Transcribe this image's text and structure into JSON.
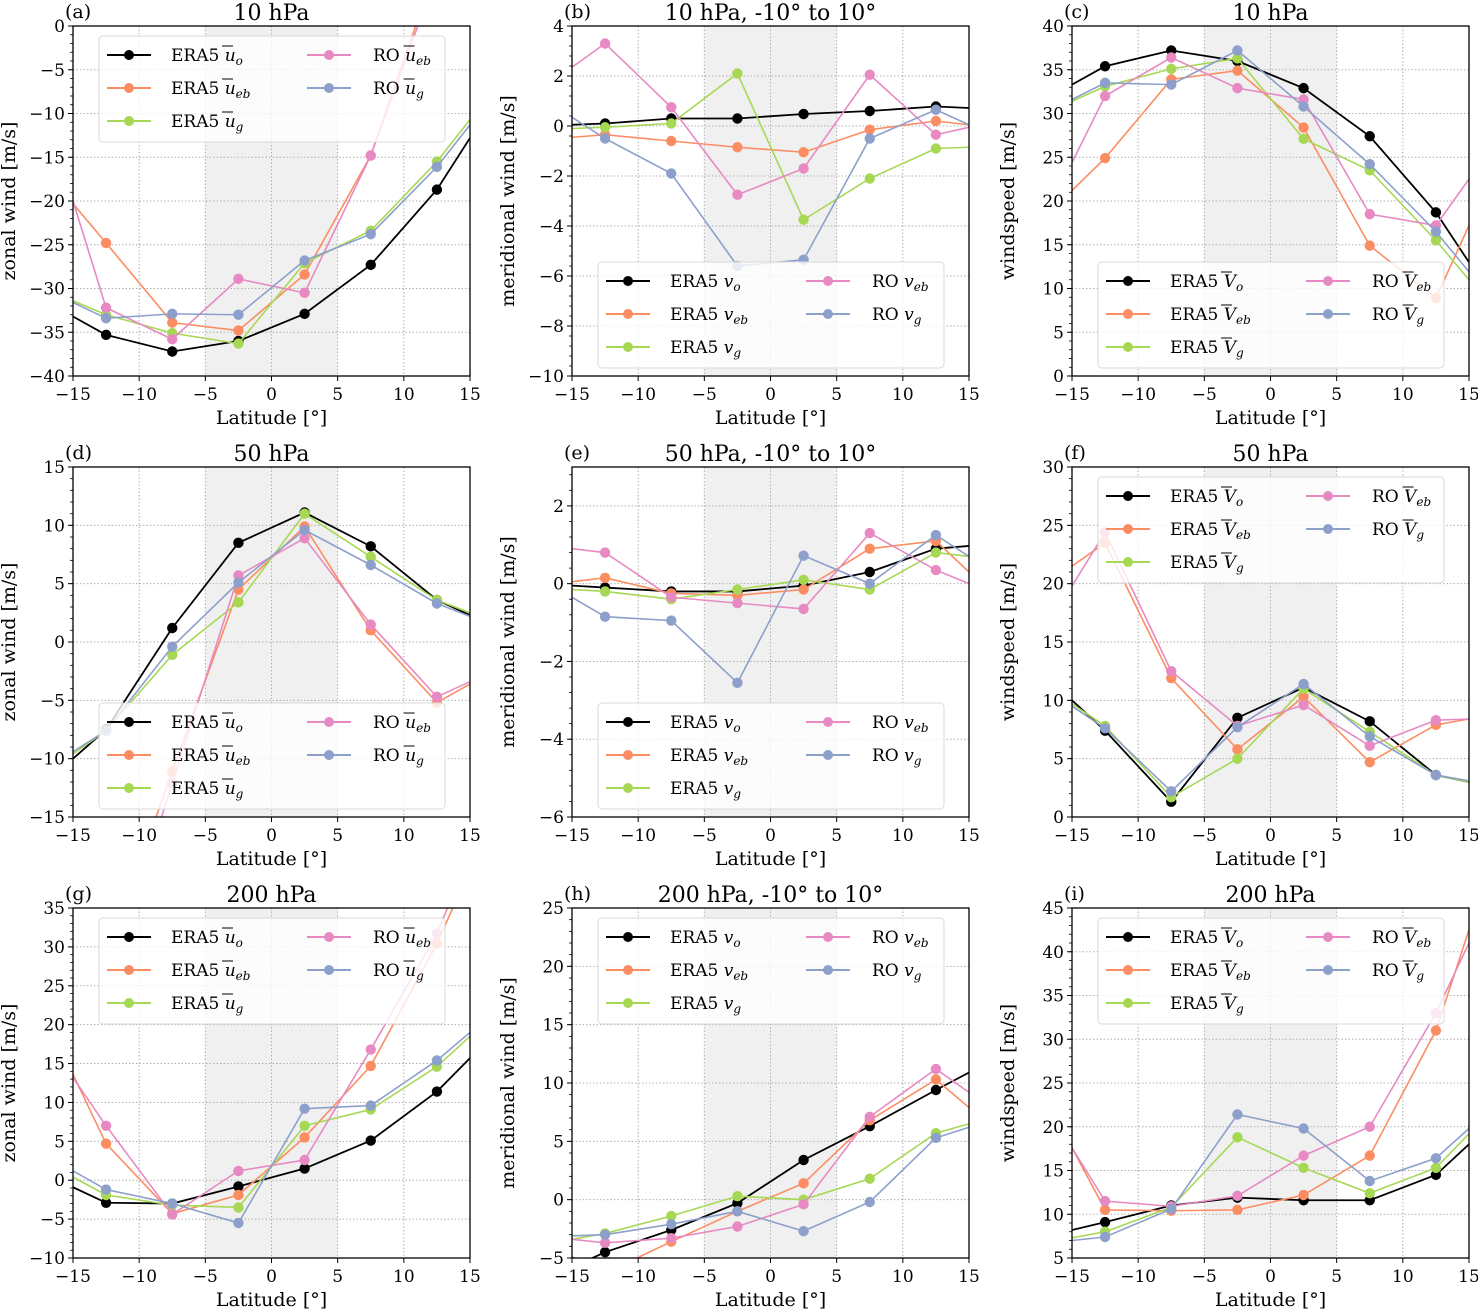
{
  "figure": {
    "xlabel": "Latitude [°]",
    "x_ticks": [
      -15,
      -10,
      -5,
      0,
      5,
      10,
      15
    ],
    "shaded_band": [
      -5,
      5
    ],
    "colors": {
      "ERA5_o": "#000000",
      "ERA5_eb": "#fc8d62",
      "ERA5_g": "#a6d854",
      "RO_eb": "#e78ac3",
      "RO_g": "#8da0cb",
      "band": "#f0f0f0",
      "grid": "#b0b0b0",
      "legend_border": "#d9d9d9"
    }
  },
  "chart_data": [
    {
      "id": "a",
      "letter": "(a)",
      "type": "line",
      "title": "10 hPa",
      "xlabel": "Latitude [°]",
      "ylabel": "zonal wind [m/s]",
      "xlim": [
        -15,
        15
      ],
      "ylim": [
        -40,
        0
      ],
      "yticks": [
        -40,
        -35,
        -30,
        -25,
        -20,
        -15,
        -10,
        -5,
        0
      ],
      "legend_placement": "top",
      "legend_var": "u",
      "legend_bar": true,
      "x": [
        -15,
        -12.5,
        -7.5,
        -2.5,
        2.5,
        7.5,
        12.5,
        15
      ],
      "series": [
        {
          "key": "ERA5_o",
          "name": "ERA5 ū_o",
          "prefix": "ERA5",
          "sub": "o",
          "values": [
            -33.2,
            -35.3,
            -37.2,
            -36.0,
            -32.9,
            -27.3,
            -18.7,
            -12.8
          ]
        },
        {
          "key": "ERA5_eb",
          "name": "ERA5 ū_eb",
          "prefix": "ERA5",
          "sub": "eb",
          "values": [
            -20.3,
            -24.8,
            -33.9,
            -34.8,
            -28.4,
            -14.8,
            7.0,
            16.0
          ]
        },
        {
          "key": "ERA5_g",
          "name": "ERA5 ū_g",
          "prefix": "ERA5",
          "sub": "g",
          "values": [
            -31.4,
            -33.0,
            -35.1,
            -36.3,
            -27.1,
            -23.4,
            -15.5,
            -10.7
          ]
        },
        {
          "key": "RO_eb",
          "name": "RO ū_eb",
          "prefix": "RO",
          "sub": "eb",
          "values": [
            -20.0,
            -32.2,
            -35.8,
            -28.9,
            -30.5,
            -14.8,
            6.0,
            15.0
          ]
        },
        {
          "key": "RO_g",
          "name": "RO ū_g",
          "prefix": "RO",
          "sub": "g",
          "values": [
            -31.6,
            -33.4,
            -32.9,
            -33.0,
            -26.8,
            -23.8,
            -16.1,
            -11.3
          ]
        }
      ]
    },
    {
      "id": "b",
      "letter": "(b)",
      "type": "line",
      "title": "10 hPa, -10° to 10°",
      "xlabel": "Latitude [°]",
      "ylabel": "meridional wind [m/s]",
      "xlim": [
        -15,
        15
      ],
      "ylim": [
        -10,
        4
      ],
      "yticks": [
        -10,
        -8,
        -6,
        -4,
        -2,
        0,
        2,
        4
      ],
      "legend_placement": "bottom",
      "legend_var": "v",
      "legend_bar": false,
      "x": [
        -15,
        -12.5,
        -7.5,
        -2.5,
        2.5,
        7.5,
        12.5,
        15
      ],
      "series": [
        {
          "key": "ERA5_o",
          "name": "ERA5 v_o",
          "prefix": "ERA5",
          "sub": "o",
          "values": [
            0.05,
            0.1,
            0.3,
            0.3,
            0.48,
            0.6,
            0.78,
            0.72
          ]
        },
        {
          "key": "ERA5_eb",
          "name": "ERA5 v_eb",
          "prefix": "ERA5",
          "sub": "eb",
          "values": [
            -0.45,
            -0.35,
            -0.6,
            -0.85,
            -1.05,
            -0.15,
            0.2,
            0.05
          ]
        },
        {
          "key": "ERA5_g",
          "name": "ERA5 v_g",
          "prefix": "ERA5",
          "sub": "g",
          "values": [
            -0.1,
            -0.05,
            0.1,
            2.1,
            -3.75,
            -2.1,
            -0.9,
            -0.85
          ]
        },
        {
          "key": "RO_eb",
          "name": "RO v_eb",
          "prefix": "RO",
          "sub": "eb",
          "values": [
            2.35,
            3.3,
            0.75,
            -2.75,
            -1.7,
            2.05,
            -0.35,
            -0.05
          ]
        },
        {
          "key": "RO_g",
          "name": "RO v_g",
          "prefix": "RO",
          "sub": "g",
          "values": [
            0.35,
            -0.5,
            -1.9,
            -5.6,
            -5.35,
            -0.5,
            0.65,
            0.05
          ]
        }
      ]
    },
    {
      "id": "c",
      "letter": "(c)",
      "type": "line",
      "title": "10 hPa",
      "xlabel": "Latitude [°]",
      "ylabel": "windspeed [m/s]",
      "xlim": [
        -15,
        15
      ],
      "ylim": [
        0,
        40
      ],
      "yticks": [
        0,
        5,
        10,
        15,
        20,
        25,
        30,
        35,
        40
      ],
      "legend_placement": "bottom",
      "legend_var": "V",
      "legend_bar": true,
      "x": [
        -15,
        -12.5,
        -7.5,
        -2.5,
        2.5,
        7.5,
        12.5,
        15
      ],
      "series": [
        {
          "key": "ERA5_o",
          "name": "ERA5 V̄_o",
          "prefix": "ERA5",
          "sub": "o",
          "values": [
            33.3,
            35.4,
            37.2,
            36.0,
            32.9,
            27.4,
            18.7,
            13.0
          ]
        },
        {
          "key": "ERA5_eb",
          "name": "ERA5 V̄_eb",
          "prefix": "ERA5",
          "sub": "eb",
          "values": [
            21.2,
            24.9,
            33.9,
            34.9,
            28.4,
            14.9,
            8.9,
            17.2
          ]
        },
        {
          "key": "ERA5_g",
          "name": "ERA5 V̄_g",
          "prefix": "ERA5",
          "sub": "g",
          "values": [
            31.4,
            33.1,
            35.1,
            36.3,
            27.1,
            23.5,
            15.5,
            11.0
          ]
        },
        {
          "key": "RO_eb",
          "name": "RO V̄_eb",
          "prefix": "RO",
          "sub": "eb",
          "values": [
            24.4,
            32.0,
            36.4,
            32.9,
            31.6,
            18.5,
            17.2,
            22.5
          ]
        },
        {
          "key": "RO_g",
          "name": "RO V̄_g",
          "prefix": "RO",
          "sub": "g",
          "values": [
            31.6,
            33.5,
            33.3,
            37.2,
            30.8,
            24.2,
            16.5,
            11.9
          ]
        }
      ]
    },
    {
      "id": "d",
      "letter": "(d)",
      "type": "line",
      "title": "50 hPa",
      "xlabel": "Latitude [°]",
      "ylabel": "zonal wind [m/s]",
      "xlim": [
        -15,
        15
      ],
      "ylim": [
        -15,
        15
      ],
      "yticks": [
        -15,
        -10,
        -5,
        0,
        5,
        10,
        15
      ],
      "legend_placement": "bottom",
      "legend_var": "u",
      "legend_bar": true,
      "x": [
        -15,
        -12.5,
        -7.5,
        -2.5,
        2.5,
        7.5,
        12.5,
        15
      ],
      "series": [
        {
          "key": "ERA5_o",
          "name": "ERA5 ū_o",
          "prefix": "ERA5",
          "sub": "o",
          "values": [
            -10.0,
            -7.5,
            1.2,
            8.5,
            11.1,
            8.2,
            3.6,
            2.3
          ]
        },
        {
          "key": "ERA5_eb",
          "name": "ERA5 ū_eb",
          "prefix": "ERA5",
          "sub": "eb",
          "values": [
            -34.0,
            -27.0,
            -11.1,
            4.5,
            9.9,
            1.0,
            -5.2,
            -3.6
          ]
        },
        {
          "key": "ERA5_g",
          "name": "ERA5 ū_g",
          "prefix": "ERA5",
          "sub": "g",
          "values": [
            -9.6,
            -7.6,
            -1.1,
            3.4,
            11.0,
            7.3,
            3.6,
            2.5
          ]
        },
        {
          "key": "RO_eb",
          "name": "RO ū_eb",
          "prefix": "RO",
          "sub": "eb",
          "values": [
            -38.0,
            -30.0,
            -12.1,
            5.7,
            8.9,
            1.5,
            -4.7,
            -3.4
          ]
        },
        {
          "key": "RO_g",
          "name": "RO ū_g",
          "prefix": "RO",
          "sub": "g",
          "values": [
            -9.4,
            -7.6,
            -0.4,
            5.1,
            9.6,
            6.6,
            3.3,
            2.2
          ]
        }
      ]
    },
    {
      "id": "e",
      "letter": "(e)",
      "type": "line",
      "title": "50 hPa, -10° to 10°",
      "xlabel": "Latitude [°]",
      "ylabel": "meridional wind [m/s]",
      "xlim": [
        -15,
        15
      ],
      "ylim": [
        -6,
        3
      ],
      "yticks": [
        -6,
        -4,
        -2,
        0,
        2
      ],
      "legend_placement": "bottom",
      "legend_var": "v",
      "legend_bar": false,
      "x": [
        -15,
        -12.5,
        -7.5,
        -2.5,
        2.5,
        7.5,
        12.5,
        15
      ],
      "series": [
        {
          "key": "ERA5_o",
          "name": "ERA5 v_o",
          "prefix": "ERA5",
          "sub": "o",
          "values": [
            -0.05,
            -0.1,
            -0.2,
            -0.2,
            -0.05,
            0.3,
            0.9,
            0.97
          ]
        },
        {
          "key": "ERA5_eb",
          "name": "ERA5 v_eb",
          "prefix": "ERA5",
          "sub": "eb",
          "values": [
            0.05,
            0.15,
            -0.25,
            -0.3,
            -0.15,
            0.9,
            1.1,
            0.3
          ]
        },
        {
          "key": "ERA5_g",
          "name": "ERA5 v_g",
          "prefix": "ERA5",
          "sub": "g",
          "values": [
            -0.15,
            -0.2,
            -0.4,
            -0.15,
            0.1,
            -0.15,
            0.8,
            0.7
          ]
        },
        {
          "key": "RO_eb",
          "name": "RO v_eb",
          "prefix": "RO",
          "sub": "eb",
          "values": [
            0.9,
            0.8,
            -0.35,
            -0.5,
            -0.65,
            1.3,
            0.35,
            0.0
          ]
        },
        {
          "key": "RO_g",
          "name": "RO v_g",
          "prefix": "RO",
          "sub": "g",
          "values": [
            -0.35,
            -0.85,
            -0.95,
            -2.55,
            0.72,
            0.0,
            1.25,
            0.7
          ]
        }
      ]
    },
    {
      "id": "f",
      "letter": "(f)",
      "type": "line",
      "title": "50 hPa",
      "xlabel": "Latitude [°]",
      "ylabel": "windspeed [m/s]",
      "xlim": [
        -15,
        15
      ],
      "ylim": [
        0,
        30
      ],
      "yticks": [
        0,
        5,
        10,
        15,
        20,
        25,
        30
      ],
      "legend_placement": "top",
      "legend_var": "V",
      "legend_bar": true,
      "x": [
        -15,
        -12.5,
        -7.5,
        -2.5,
        2.5,
        7.5,
        12.5,
        15
      ],
      "series": [
        {
          "key": "ERA5_o",
          "name": "ERA5 V̄_o",
          "prefix": "ERA5",
          "sub": "o",
          "values": [
            10.0,
            7.4,
            1.3,
            8.5,
            11.1,
            8.2,
            3.6,
            3.0
          ]
        },
        {
          "key": "ERA5_eb",
          "name": "ERA5 V̄_eb",
          "prefix": "ERA5",
          "sub": "eb",
          "values": [
            21.5,
            23.5,
            11.9,
            5.8,
            10.3,
            4.7,
            7.9,
            8.4
          ]
        },
        {
          "key": "ERA5_g",
          "name": "ERA5 V̄_g",
          "prefix": "ERA5",
          "sub": "g",
          "values": [
            9.7,
            7.8,
            1.7,
            5.0,
            11.0,
            7.3,
            3.6,
            3.0
          ]
        },
        {
          "key": "RO_eb",
          "name": "RO V̄_eb",
          "prefix": "RO",
          "sub": "eb",
          "values": [
            19.8,
            24.4,
            12.5,
            7.8,
            9.6,
            6.1,
            8.3,
            8.4
          ]
        },
        {
          "key": "RO_g",
          "name": "RO V̄_g",
          "prefix": "RO",
          "sub": "g",
          "values": [
            9.5,
            7.6,
            2.2,
            7.7,
            11.4,
            6.9,
            3.6,
            3.1
          ]
        }
      ]
    },
    {
      "id": "g",
      "letter": "(g)",
      "type": "line",
      "title": "200 hPa",
      "xlabel": "Latitude [°]",
      "ylabel": "zonal wind [m/s]",
      "xlim": [
        -15,
        15
      ],
      "ylim": [
        -10,
        35
      ],
      "yticks": [
        -10,
        -5,
        0,
        5,
        10,
        15,
        20,
        25,
        30,
        35
      ],
      "legend_placement": "top",
      "legend_var": "u",
      "legend_bar": true,
      "x": [
        -15,
        -12.5,
        -7.5,
        -2.5,
        2.5,
        7.5,
        12.5,
        15
      ],
      "series": [
        {
          "key": "ERA5_o",
          "name": "ERA5 ū_o",
          "prefix": "ERA5",
          "sub": "o",
          "values": [
            -0.9,
            -2.9,
            -3.0,
            -0.8,
            1.5,
            5.1,
            11.4,
            15.7
          ]
        },
        {
          "key": "ERA5_eb",
          "name": "ERA5 ū_eb",
          "prefix": "ERA5",
          "sub": "eb",
          "values": [
            13.6,
            4.7,
            -4.3,
            -1.9,
            5.5,
            14.7,
            30.4,
            40.0
          ]
        },
        {
          "key": "ERA5_g",
          "name": "ERA5 ū_g",
          "prefix": "ERA5",
          "sub": "g",
          "values": [
            0.4,
            -1.9,
            -3.2,
            -3.5,
            7.0,
            9.1,
            14.6,
            18.5
          ]
        },
        {
          "key": "RO_eb",
          "name": "RO ū_eb",
          "prefix": "RO",
          "sub": "eb",
          "values": [
            13.2,
            7.0,
            -4.4,
            1.2,
            2.6,
            16.8,
            31.7,
            42.0
          ]
        },
        {
          "key": "RO_g",
          "name": "RO ū_g",
          "prefix": "RO",
          "sub": "g",
          "values": [
            1.2,
            -1.2,
            -3.0,
            -5.5,
            9.2,
            9.6,
            15.4,
            19.0
          ]
        }
      ]
    },
    {
      "id": "h",
      "letter": "(h)",
      "type": "line",
      "title": "200 hPa, -10° to 10°",
      "xlabel": "Latitude [°]",
      "ylabel": "meridional wind [m/s]",
      "xlim": [
        -15,
        15
      ],
      "ylim": [
        -5,
        25
      ],
      "yticks": [
        -5,
        0,
        5,
        10,
        15,
        20,
        25
      ],
      "legend_placement": "top",
      "legend_var": "v",
      "legend_bar": false,
      "x": [
        -15,
        -12.5,
        -7.5,
        -2.5,
        2.5,
        7.5,
        12.5,
        15
      ],
      "series": [
        {
          "key": "ERA5_o",
          "name": "ERA5 v_o",
          "prefix": "ERA5",
          "sub": "o",
          "values": [
            -5.8,
            -4.5,
            -2.6,
            -0.3,
            3.4,
            6.3,
            9.4,
            10.9
          ]
        },
        {
          "key": "ERA5_eb",
          "name": "ERA5 v_eb",
          "prefix": "ERA5",
          "sub": "eb",
          "values": [
            -4.9,
            -6.3,
            -3.6,
            -1.0,
            1.4,
            6.8,
            10.3,
            7.9
          ]
        },
        {
          "key": "ERA5_g",
          "name": "ERA5 v_g",
          "prefix": "ERA5",
          "sub": "g",
          "values": [
            -3.4,
            -2.9,
            -1.4,
            0.3,
            0.0,
            1.8,
            5.7,
            6.5
          ]
        },
        {
          "key": "RO_eb",
          "name": "RO v_eb",
          "prefix": "RO",
          "sub": "eb",
          "values": [
            -3.4,
            -3.7,
            -3.3,
            -2.3,
            -0.4,
            7.1,
            11.2,
            9.2
          ]
        },
        {
          "key": "RO_g",
          "name": "RO v_g",
          "prefix": "RO",
          "sub": "g",
          "values": [
            -3.1,
            -3.0,
            -2.1,
            -1.0,
            -2.7,
            -0.2,
            5.3,
            6.2
          ]
        }
      ]
    },
    {
      "id": "i",
      "letter": "(i)",
      "type": "line",
      "title": "200 hPa",
      "xlabel": "Latitude [°]",
      "ylabel": "windspeed [m/s]",
      "xlim": [
        -15,
        15
      ],
      "ylim": [
        5,
        45
      ],
      "yticks": [
        5,
        10,
        15,
        20,
        25,
        30,
        35,
        40,
        45
      ],
      "legend_placement": "top",
      "legend_var": "V",
      "legend_bar": true,
      "x": [
        -15,
        -12.5,
        -7.5,
        -2.5,
        2.5,
        7.5,
        12.5,
        15
      ],
      "series": [
        {
          "key": "ERA5_o",
          "name": "ERA5 V̄_o",
          "prefix": "ERA5",
          "sub": "o",
          "values": [
            8.2,
            9.1,
            11.0,
            11.9,
            11.6,
            11.6,
            14.5,
            18.0
          ]
        },
        {
          "key": "ERA5_eb",
          "name": "ERA5 V̄_eb",
          "prefix": "ERA5",
          "sub": "eb",
          "values": [
            17.6,
            10.5,
            10.4,
            10.5,
            12.2,
            16.7,
            31.0,
            42.5
          ]
        },
        {
          "key": "ERA5_g",
          "name": "ERA5 V̄_g",
          "prefix": "ERA5",
          "sub": "g",
          "values": [
            7.3,
            8.0,
            10.8,
            18.8,
            15.3,
            12.4,
            15.3,
            19.2
          ]
        },
        {
          "key": "RO_eb",
          "name": "RO V̄_eb",
          "prefix": "RO",
          "sub": "eb",
          "values": [
            17.6,
            11.5,
            10.9,
            12.1,
            16.7,
            20.0,
            33.0,
            41.0
          ]
        },
        {
          "key": "RO_g",
          "name": "RO V̄_g",
          "prefix": "RO",
          "sub": "g",
          "values": [
            7.0,
            7.4,
            10.6,
            21.4,
            19.8,
            13.8,
            16.4,
            19.8
          ]
        }
      ]
    }
  ]
}
